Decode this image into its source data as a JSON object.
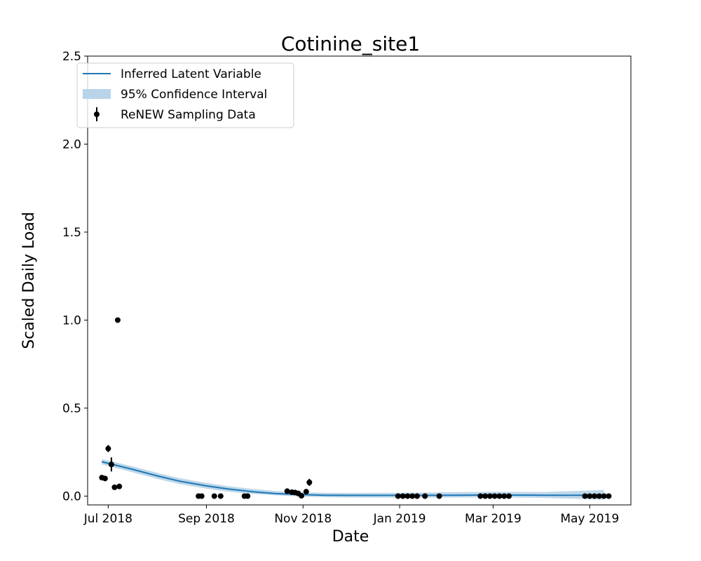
{
  "chart_data": {
    "type": "line",
    "title": "Cotinine_site1",
    "xlabel": "Date",
    "ylabel": "Scaled Daily Load",
    "xlim": [
      "2018-06-18",
      "2019-05-27"
    ],
    "ylim": [
      -0.05,
      2.5
    ],
    "x_ticks": [
      {
        "date": "2018-07-01",
        "label": "Jul 2018"
      },
      {
        "date": "2018-09-01",
        "label": "Sep 2018"
      },
      {
        "date": "2018-11-01",
        "label": "Nov 2018"
      },
      {
        "date": "2019-01-01",
        "label": "Jan 2019"
      },
      {
        "date": "2019-03-01",
        "label": "Mar 2019"
      },
      {
        "date": "2019-05-01",
        "label": "May 2019"
      }
    ],
    "y_ticks": [
      0.0,
      0.5,
      1.0,
      1.5,
      2.0,
      2.5
    ],
    "y_tick_labels": [
      "0.0",
      "0.5",
      "1.0",
      "1.5",
      "2.0",
      "2.5"
    ],
    "grid": false,
    "legend": {
      "position": "upper-left",
      "entries": [
        {
          "label": "Inferred Latent Variable",
          "kind": "line",
          "color": "#1f77b4"
        },
        {
          "label": "95% Confidence Interval",
          "kind": "band",
          "color": "#b7d4e8"
        },
        {
          "label": "ReNEW Sampling Data",
          "kind": "errorbar-point",
          "color": "#000000"
        }
      ]
    },
    "series": [
      {
        "name": "Inferred Latent Variable",
        "kind": "line",
        "color": "#1f77b4",
        "points": [
          {
            "x": "2018-06-27",
            "y": 0.195
          },
          {
            "x": "2018-07-15",
            "y": 0.155
          },
          {
            "x": "2018-08-01",
            "y": 0.115
          },
          {
            "x": "2018-08-15",
            "y": 0.085
          },
          {
            "x": "2018-09-01",
            "y": 0.058
          },
          {
            "x": "2018-09-15",
            "y": 0.04
          },
          {
            "x": "2018-10-01",
            "y": 0.024
          },
          {
            "x": "2018-10-15",
            "y": 0.014
          },
          {
            "x": "2018-11-01",
            "y": 0.008
          },
          {
            "x": "2018-11-15",
            "y": 0.005
          },
          {
            "x": "2018-12-01",
            "y": 0.004
          },
          {
            "x": "2019-01-01",
            "y": 0.004
          },
          {
            "x": "2019-02-01",
            "y": 0.005
          },
          {
            "x": "2019-03-01",
            "y": 0.006
          },
          {
            "x": "2019-04-01",
            "y": 0.005
          },
          {
            "x": "2019-05-10",
            "y": 0.005
          }
        ]
      },
      {
        "name": "95% Confidence Interval",
        "kind": "band",
        "color": "#b7d4e8",
        "points": [
          {
            "x": "2018-06-27",
            "lower": 0.18,
            "upper": 0.21
          },
          {
            "x": "2018-07-15",
            "lower": 0.138,
            "upper": 0.172
          },
          {
            "x": "2018-08-01",
            "lower": 0.098,
            "upper": 0.132
          },
          {
            "x": "2018-08-15",
            "lower": 0.068,
            "upper": 0.102
          },
          {
            "x": "2018-09-01",
            "lower": 0.042,
            "upper": 0.075
          },
          {
            "x": "2018-09-15",
            "lower": 0.025,
            "upper": 0.056
          },
          {
            "x": "2018-10-01",
            "lower": 0.012,
            "upper": 0.04
          },
          {
            "x": "2018-10-15",
            "lower": 0.004,
            "upper": 0.029
          },
          {
            "x": "2018-11-01",
            "lower": -0.003,
            "upper": 0.022
          },
          {
            "x": "2018-11-15",
            "lower": -0.006,
            "upper": 0.019
          },
          {
            "x": "2018-12-01",
            "lower": -0.008,
            "upper": 0.018
          },
          {
            "x": "2019-01-01",
            "lower": -0.009,
            "upper": 0.019
          },
          {
            "x": "2019-02-01",
            "lower": -0.008,
            "upper": 0.022
          },
          {
            "x": "2019-03-01",
            "lower": -0.007,
            "upper": 0.024
          },
          {
            "x": "2019-04-01",
            "lower": -0.01,
            "upper": 0.023
          },
          {
            "x": "2019-05-10",
            "lower": -0.02,
            "upper": 0.035
          }
        ]
      },
      {
        "name": "ReNEW Sampling Data",
        "kind": "scatter-errorbar",
        "color": "#000000",
        "points": [
          {
            "x": "2018-06-27",
            "y": 0.105,
            "err": 0.008
          },
          {
            "x": "2018-06-29",
            "y": 0.1,
            "err": 0.006
          },
          {
            "x": "2018-07-01",
            "y": 0.27,
            "err": 0.02
          },
          {
            "x": "2018-07-03",
            "y": 0.18,
            "err": 0.04
          },
          {
            "x": "2018-07-05",
            "y": 0.05,
            "err": 0.005
          },
          {
            "x": "2018-07-07",
            "y": 1.0,
            "err": 0.005
          },
          {
            "x": "2018-07-08",
            "y": 0.055,
            "err": 0.006
          },
          {
            "x": "2018-08-27",
            "y": 0.0,
            "err": 0.0
          },
          {
            "x": "2018-08-29",
            "y": 0.0,
            "err": 0.0
          },
          {
            "x": "2018-09-06",
            "y": 0.0,
            "err": 0.0
          },
          {
            "x": "2018-09-10",
            "y": 0.0,
            "err": 0.0
          },
          {
            "x": "2018-09-25",
            "y": 0.0,
            "err": 0.0
          },
          {
            "x": "2018-09-27",
            "y": 0.0,
            "err": 0.0
          },
          {
            "x": "2018-10-22",
            "y": 0.028,
            "err": 0.006
          },
          {
            "x": "2018-10-25",
            "y": 0.022,
            "err": 0.006
          },
          {
            "x": "2018-10-27",
            "y": 0.02,
            "err": 0.005
          },
          {
            "x": "2018-10-29",
            "y": 0.015,
            "err": 0.005
          },
          {
            "x": "2018-10-31",
            "y": 0.002,
            "err": 0.004
          },
          {
            "x": "2018-11-03",
            "y": 0.025,
            "err": 0.01
          },
          {
            "x": "2018-11-05",
            "y": 0.078,
            "err": 0.02
          },
          {
            "x": "2018-12-31",
            "y": 0.0,
            "err": 0.0
          },
          {
            "x": "2019-01-03",
            "y": 0.0,
            "err": 0.0
          },
          {
            "x": "2019-01-06",
            "y": 0.0,
            "err": 0.0
          },
          {
            "x": "2019-01-09",
            "y": 0.0,
            "err": 0.0
          },
          {
            "x": "2019-01-12",
            "y": 0.0,
            "err": 0.0
          },
          {
            "x": "2019-01-17",
            "y": 0.0,
            "err": 0.0
          },
          {
            "x": "2019-01-26",
            "y": 0.0,
            "err": 0.0
          },
          {
            "x": "2019-02-21",
            "y": 0.0,
            "err": 0.0
          },
          {
            "x": "2019-02-24",
            "y": 0.0,
            "err": 0.0
          },
          {
            "x": "2019-02-27",
            "y": 0.0,
            "err": 0.0
          },
          {
            "x": "2019-03-02",
            "y": 0.0,
            "err": 0.0
          },
          {
            "x": "2019-03-05",
            "y": 0.0,
            "err": 0.0
          },
          {
            "x": "2019-03-08",
            "y": 0.0,
            "err": 0.0
          },
          {
            "x": "2019-03-11",
            "y": 0.0,
            "err": 0.0
          },
          {
            "x": "2019-04-28",
            "y": 0.0,
            "err": 0.0
          },
          {
            "x": "2019-05-01",
            "y": 0.0,
            "err": 0.0
          },
          {
            "x": "2019-05-04",
            "y": 0.0,
            "err": 0.0
          },
          {
            "x": "2019-05-07",
            "y": 0.0,
            "err": 0.0
          },
          {
            "x": "2019-05-10",
            "y": 0.0,
            "err": 0.0
          },
          {
            "x": "2019-05-13",
            "y": 0.0,
            "err": 0.0
          }
        ]
      }
    ]
  }
}
